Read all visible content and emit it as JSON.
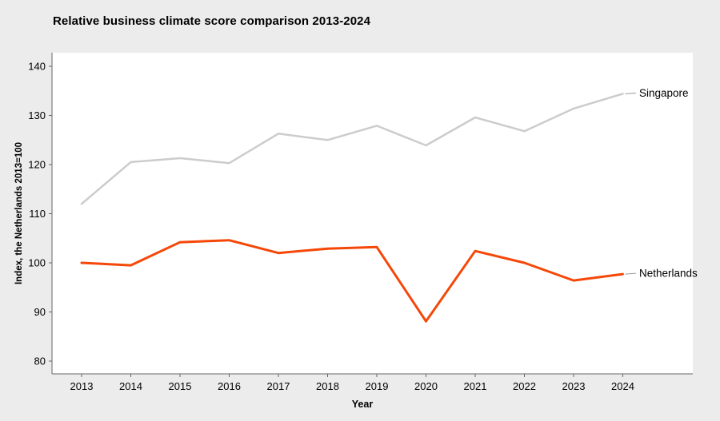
{
  "page": {
    "background_color": "#ECECEC",
    "plot_background_color": "#FFFFFF"
  },
  "chart_data": {
    "type": "line",
    "title": "Relative business climate score comparison 2013-2024",
    "xlabel": "Year",
    "ylabel": "Index, the Netherlands 2013=100",
    "categories": [
      2013,
      2014,
      2015,
      2016,
      2017,
      2018,
      2019,
      2020,
      2021,
      2022,
      2023,
      2024
    ],
    "series": [
      {
        "name": "Singapore",
        "color": "#CCCCCC",
        "line_width": 2.5,
        "values": [
          112,
          120.5,
          121.3,
          120.3,
          126.3,
          125,
          127.9,
          123.9,
          129.6,
          126.8,
          131.4,
          134.4
        ]
      },
      {
        "name": "Netherlands",
        "color": "#F54708",
        "line_width": 3,
        "values": [
          100,
          99.5,
          104.2,
          104.6,
          102,
          102.9,
          103.2,
          88.1,
          102.4,
          100,
          96.4,
          97.7
        ]
      }
    ],
    "y_ticks": [
      80,
      90,
      100,
      110,
      120,
      130,
      140
    ],
    "ylim": [
      77.4,
      142.8
    ],
    "grid": false,
    "legend_position": "end-of-line-labels",
    "axis_color": "#666666",
    "tick_label_color": "#000000",
    "connector_color": "#999999"
  }
}
